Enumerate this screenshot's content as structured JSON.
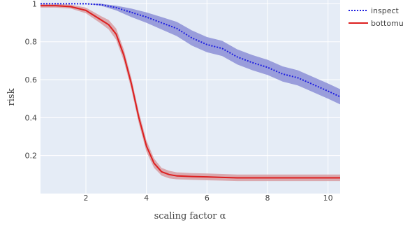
{
  "chart_data": {
    "type": "line",
    "xlabel": "scaling factor α",
    "ylabel": "risk",
    "xlim": [
      0.5,
      10.4
    ],
    "ylim": [
      0.0,
      1.02
    ],
    "x_ticks": [
      2,
      4,
      6,
      8,
      10
    ],
    "y_ticks": [
      0.2,
      0.4,
      0.6,
      0.8,
      1
    ],
    "y_tick_labels": [
      "0.2",
      "0.4",
      "0.6",
      "0.8",
      "1"
    ],
    "grid": true,
    "legend_position": "top-right",
    "series": [
      {
        "name": "inspect",
        "color": "#1f1fe0",
        "band_color": "#8c8fd6",
        "line_style": "dotted",
        "x": [
          0.5,
          1.0,
          1.5,
          2.0,
          2.5,
          3.0,
          3.5,
          4.0,
          4.5,
          5.0,
          5.5,
          6.0,
          6.5,
          7.0,
          7.5,
          8.0,
          8.5,
          9.0,
          9.5,
          10.0,
          10.4
        ],
        "y": [
          1.0,
          1.0,
          1.0,
          1.0,
          0.995,
          0.98,
          0.955,
          0.93,
          0.9,
          0.87,
          0.82,
          0.785,
          0.765,
          0.72,
          0.69,
          0.665,
          0.63,
          0.61,
          0.575,
          0.54,
          0.51
        ],
        "band_lower": [
          1.0,
          1.0,
          1.0,
          1.0,
          0.99,
          0.965,
          0.93,
          0.9,
          0.865,
          0.83,
          0.78,
          0.745,
          0.725,
          0.68,
          0.65,
          0.625,
          0.59,
          0.57,
          0.535,
          0.5,
          0.47
        ],
        "band_upper": [
          1.0,
          1.0,
          1.0,
          1.0,
          1.0,
          0.99,
          0.975,
          0.955,
          0.93,
          0.905,
          0.86,
          0.825,
          0.805,
          0.76,
          0.73,
          0.705,
          0.67,
          0.65,
          0.615,
          0.58,
          0.55
        ]
      },
      {
        "name": "bottomup",
        "color": "#dd1f1f",
        "band_color": "#d89ea2",
        "line_style": "solid",
        "x": [
          0.5,
          1.0,
          1.5,
          2.0,
          2.5,
          2.75,
          3.0,
          3.25,
          3.5,
          3.75,
          4.0,
          4.25,
          4.5,
          4.75,
          5.0,
          5.5,
          6.0,
          6.5,
          7.0,
          8.0,
          9.0,
          10.0,
          10.4
        ],
        "y": [
          0.99,
          0.99,
          0.985,
          0.965,
          0.915,
          0.89,
          0.84,
          0.73,
          0.58,
          0.4,
          0.25,
          0.16,
          0.115,
          0.1,
          0.093,
          0.09,
          0.088,
          0.085,
          0.083,
          0.083,
          0.083,
          0.083,
          0.083
        ],
        "band_lower": [
          0.98,
          0.98,
          0.975,
          0.95,
          0.895,
          0.865,
          0.81,
          0.7,
          0.55,
          0.37,
          0.22,
          0.135,
          0.095,
          0.08,
          0.075,
          0.072,
          0.07,
          0.068,
          0.066,
          0.066,
          0.066,
          0.066,
          0.066
        ],
        "band_upper": [
          1.0,
          1.0,
          0.995,
          0.98,
          0.935,
          0.915,
          0.87,
          0.76,
          0.61,
          0.43,
          0.28,
          0.185,
          0.135,
          0.12,
          0.112,
          0.108,
          0.106,
          0.103,
          0.1,
          0.1,
          0.1,
          0.1,
          0.1
        ]
      }
    ]
  }
}
